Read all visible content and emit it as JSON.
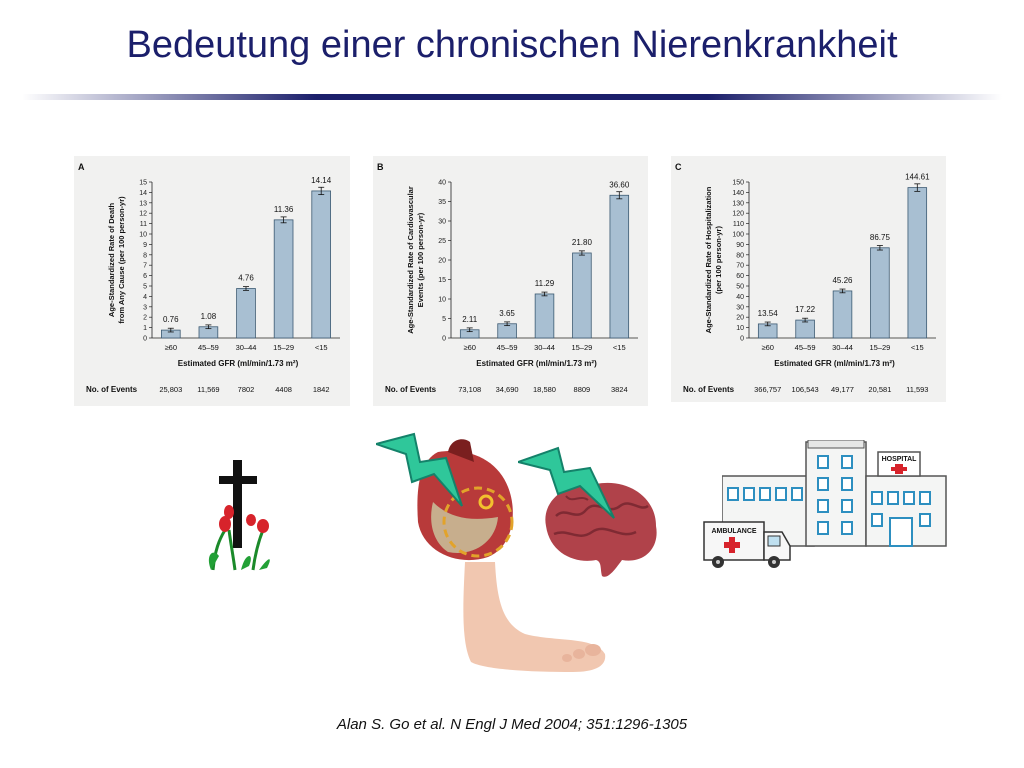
{
  "slide": {
    "title": "Bedeutung einer chronischen Nierenkrankheit",
    "citation": "Alan S. Go et al. N Engl J Med 2004; 351:1296-1305"
  },
  "colors": {
    "title": "#1b1f6b",
    "bar_fill": "#a8bfd2",
    "bar_stroke": "#3c5a72",
    "panel_bg": "#f1f1f0"
  },
  "chart_data": [
    {
      "type": "bar",
      "panel_label": "A",
      "ylabel_line1": "Age-Standardized Rate of Death",
      "ylabel_line2": "from Any Cause (per 100 person-yr)",
      "xlabel": "Estimated GFR (ml/min/1.73 m²)",
      "categories": [
        "≥60",
        "45–59",
        "30–44",
        "15–29",
        "<15"
      ],
      "values": [
        0.76,
        1.08,
        4.76,
        11.36,
        14.14
      ],
      "value_labels": [
        "0.76",
        "1.08",
        "4.76",
        "11.36",
        "14.14"
      ],
      "ylim": [
        0,
        15
      ],
      "yticks": [
        0,
        1,
        2,
        3,
        4,
        5,
        6,
        7,
        8,
        9,
        10,
        11,
        12,
        13,
        14,
        15
      ],
      "events_label": "No. of Events",
      "events": [
        "25,803",
        "11,569",
        "7802",
        "4408",
        "1842"
      ],
      "error_bars": true
    },
    {
      "type": "bar",
      "panel_label": "B",
      "ylabel_line1": "Age-Standardized Rate of Cardiovascular",
      "ylabel_line2": "Events (per 100 person-yr)",
      "xlabel": "Estimated GFR (ml/min/1.73 m²)",
      "categories": [
        "≥60",
        "45–59",
        "30–44",
        "15–29",
        "<15"
      ],
      "values": [
        2.11,
        3.65,
        11.29,
        21.8,
        36.6
      ],
      "value_labels": [
        "2.11",
        "3.65",
        "11.29",
        "21.80",
        "36.60"
      ],
      "ylim": [
        0,
        40
      ],
      "yticks": [
        0,
        5,
        10,
        15,
        20,
        25,
        30,
        35,
        40
      ],
      "events_label": "No. of Events",
      "events": [
        "73,108",
        "34,690",
        "18,580",
        "8809",
        "3824"
      ],
      "error_bars": true
    },
    {
      "type": "bar",
      "panel_label": "C",
      "ylabel_line1": "Age-Standardized Rate of Hospitalization",
      "ylabel_line2": "(per 100 person-yr)",
      "xlabel": "Estimated GFR (ml/min/1.73 m²)",
      "categories": [
        "≥60",
        "45–59",
        "30–44",
        "15–29",
        "<15"
      ],
      "values": [
        13.54,
        17.22,
        45.26,
        86.75,
        144.61
      ],
      "value_labels": [
        "13.54",
        "17.22",
        "45.26",
        "86.75",
        "144.61"
      ],
      "ylim": [
        0,
        150
      ],
      "yticks": [
        0,
        10,
        20,
        30,
        40,
        50,
        60,
        70,
        80,
        90,
        100,
        110,
        120,
        130,
        140,
        150
      ],
      "events_label": "No. of Events",
      "events": [
        "366,757",
        "106,543",
        "49,177",
        "20,581",
        "11,593"
      ],
      "error_bars": true
    }
  ],
  "illustrations": {
    "hospital_sign": "HOSPITAL",
    "ambulance_sign": "AMBULANCE",
    "icons": [
      "cross-with-tulips-icon",
      "heart-icon",
      "lightning-icon",
      "brain-icon",
      "foot-icon",
      "hospital-icon",
      "ambulance-icon"
    ]
  }
}
